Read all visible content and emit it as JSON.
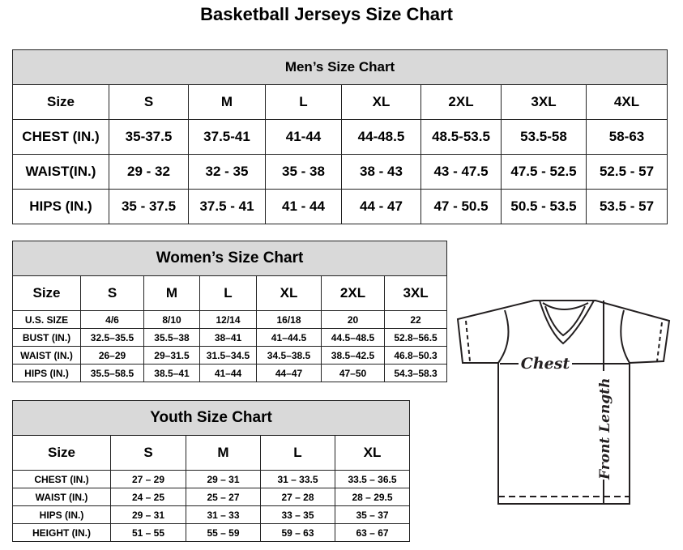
{
  "title": "Basketball Jerseys Size Chart",
  "men": {
    "title": "Men’s Size Chart",
    "header": [
      "Size",
      "S",
      "M",
      "L",
      "XL",
      "2XL",
      "3XL",
      "4XL"
    ],
    "rows": [
      [
        "CHEST (IN.)",
        "35-37.5",
        "37.5-41",
        "41-44",
        "44-48.5",
        "48.5-53.5",
        "53.5-58",
        "58-63"
      ],
      [
        "WAIST(IN.)",
        "29 - 32",
        "32 - 35",
        "35 - 38",
        "38 - 43",
        "43 - 47.5",
        "47.5 - 52.5",
        "52.5 - 57"
      ],
      [
        "HIPS (IN.)",
        "35 - 37.5",
        "37.5 - 41",
        "41 - 44",
        "44 - 47",
        "47 - 50.5",
        "50.5 - 53.5",
        "53.5 - 57"
      ]
    ]
  },
  "women": {
    "title": "Women’s Size Chart",
    "header": [
      "Size",
      "S",
      "M",
      "L",
      "XL",
      "2XL",
      "3XL"
    ],
    "rows": [
      [
        "U.S.  SIZE",
        "4/6",
        "8/10",
        "12/14",
        "16/18",
        "20",
        "22"
      ],
      [
        "BUST  (IN.)",
        "32.5–35.5",
        "35.5–38",
        "38–41",
        "41–44.5",
        "44.5–48.5",
        "52.8–56.5"
      ],
      [
        "WAIST  (IN.)",
        "26–29",
        "29–31.5",
        "31.5–34.5",
        "34.5–38.5",
        "38.5–42.5",
        "46.8–50.3"
      ],
      [
        "HIPS  (IN.)",
        "35.5–58.5",
        "38.5–41",
        "41–44",
        "44–47",
        "47–50",
        "54.3–58.3"
      ]
    ]
  },
  "youth": {
    "title": "Youth Size Chart",
    "header": [
      "Size",
      "S",
      "M",
      "L",
      "XL"
    ],
    "rows": [
      [
        "CHEST  (IN.)",
        "27  –  29",
        "29  –  31",
        "31  –  33.5",
        "33.5  –  36.5"
      ],
      [
        "WAIST  (IN.)",
        "24  –  25",
        "25  –  27",
        "27  –  28",
        "28  –  29.5"
      ],
      [
        "HIPS  (IN.)",
        "29  –  31",
        "31  –  33",
        "33  –  35",
        "35  –  37"
      ],
      [
        "HEIGHT  (IN.)",
        "51  –  55",
        "55  –  59",
        "59  –  63",
        "63  –  67"
      ]
    ]
  },
  "diagram": {
    "chest_label": "Chest",
    "length_label": "Front Length"
  },
  "colors": {
    "header_bg": "#d9d9d9",
    "line": "#231f20"
  }
}
